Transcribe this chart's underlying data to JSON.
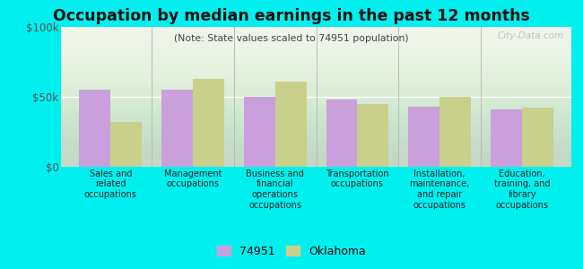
{
  "title": "Occupation by median earnings in the past 12 months",
  "subtitle": "(Note: State values scaled to 74951 population)",
  "categories": [
    "Sales and\nrelated\noccupations",
    "Management\noccupations",
    "Business and\nfinancial\noperations\noccupations",
    "Transportation\noccupations",
    "Installation,\nmaintenance,\nand repair\noccupations",
    "Education,\ntraining, and\nlibrary\noccupations"
  ],
  "values_74951": [
    55000,
    55000,
    50000,
    48000,
    43000,
    41000
  ],
  "values_oklahoma": [
    32000,
    63000,
    61000,
    45000,
    50000,
    42000
  ],
  "color_74951": "#c9a0dc",
  "color_oklahoma": "#c8d08c",
  "bar_width": 0.38,
  "ylim": [
    0,
    100000
  ],
  "yticks": [
    0,
    50000,
    100000
  ],
  "ytick_labels": [
    "$0",
    "$50k",
    "$100k"
  ],
  "background_color": "#00f0f0",
  "plot_bg_color": "#eef4e8",
  "legend_label_74951": "74951",
  "legend_label_oklahoma": "Oklahoma",
  "watermark": "City-Data.com",
  "separator_color": "#bbbbbb",
  "title_color": "#111111",
  "subtitle_color": "#444444",
  "tick_color": "#555555"
}
